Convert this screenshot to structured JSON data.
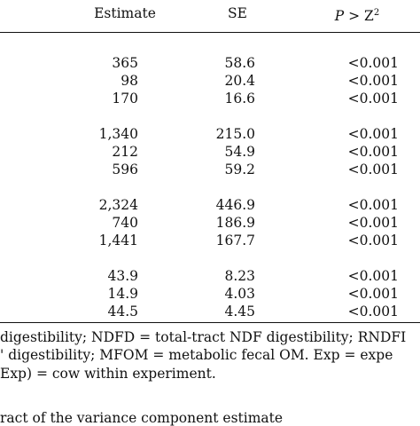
{
  "header": {
    "estimate": "Estimate",
    "se": "SE",
    "p_prefix": "P",
    "p_mid": " > Z",
    "p_sup": "2"
  },
  "groups": [
    {
      "rows": [
        {
          "estimate": "365",
          "se": "58.6",
          "p": "<0.001"
        },
        {
          "estimate": "98",
          "se": "20.4",
          "p": "<0.001"
        },
        {
          "estimate": "170",
          "se": "16.6",
          "p": "<0.001"
        }
      ]
    },
    {
      "rows": [
        {
          "estimate": "1,340",
          "se": "215.0",
          "p": "<0.001"
        },
        {
          "estimate": "212",
          "se": "54.9",
          "p": "<0.001"
        },
        {
          "estimate": "596",
          "se": "59.2",
          "p": "<0.001"
        }
      ]
    },
    {
      "rows": [
        {
          "estimate": "2,324",
          "se": "446.9",
          "p": "<0.001"
        },
        {
          "estimate": "740",
          "se": "186.9",
          "p": "<0.001"
        },
        {
          "estimate": "1,441",
          "se": "167.7",
          "p": "<0.001"
        }
      ]
    },
    {
      "rows": [
        {
          "estimate": "43.9",
          "se": "8.23",
          "p": "<0.001"
        },
        {
          "estimate": "14.9",
          "se": "4.03",
          "p": "<0.001"
        },
        {
          "estimate": "44.5",
          "se": "4.45",
          "p": "<0.001"
        }
      ]
    }
  ],
  "footnotes": {
    "line1": "digestibility; NDFD = total-tract NDF digestibility; RNDFI",
    "line2": "' digestibility; MFOM = metabolic fecal OM. Exp = expe",
    "line3": "Exp) = cow within experiment.",
    "line4": "ract of the variance component estimate"
  }
}
